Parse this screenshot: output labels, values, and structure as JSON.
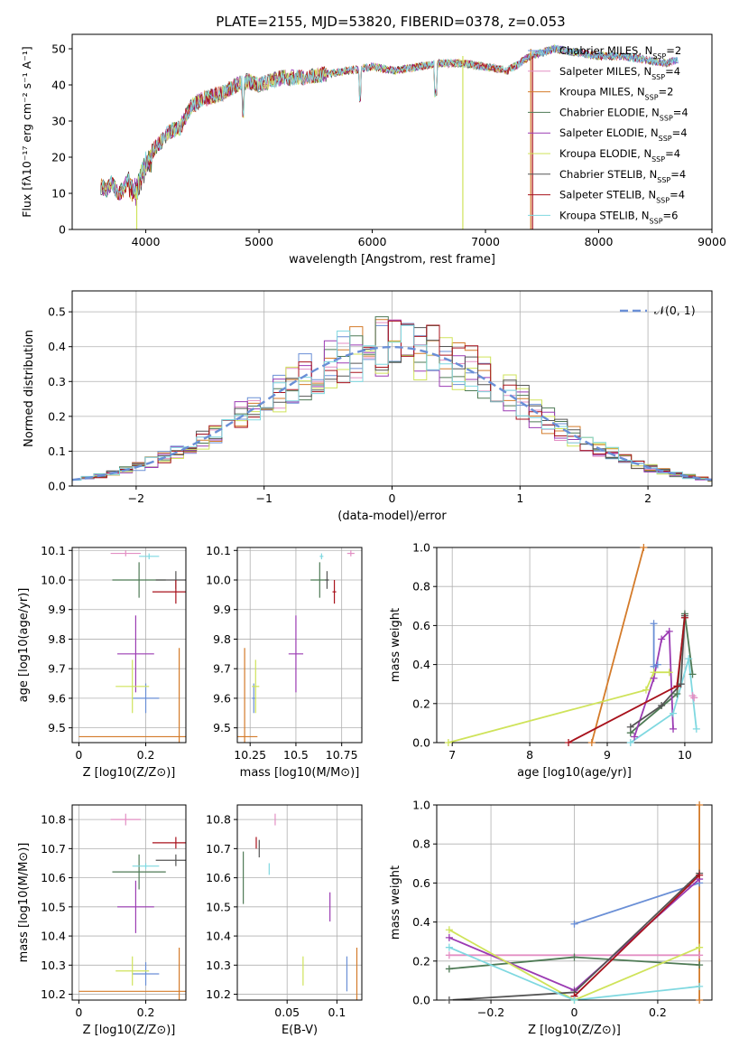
{
  "figure": {
    "title": "PLATE=2155, MJD=53820, FIBERID=0378, z=0.053"
  },
  "legend_labels": [
    {
      "name": "Chabrier MILES",
      "n": "2",
      "color": "#6a8fd6"
    },
    {
      "name": "Salpeter MILES",
      "n": "4",
      "color": "#e38fc4"
    },
    {
      "name": "Kroupa MILES",
      "n": "2",
      "color": "#d47b2a"
    },
    {
      "name": "Chabrier ELODIE",
      "n": "4",
      "color": "#4e7a55"
    },
    {
      "name": "Salpeter ELODIE",
      "n": "4",
      "color": "#9b3bb3"
    },
    {
      "name": "Kroupa ELODIE",
      "n": "4",
      "color": "#cfe35a"
    },
    {
      "name": "Chabrier STELIB",
      "n": "4",
      "color": "#555555"
    },
    {
      "name": "Salpeter STELIB",
      "n": "4",
      "color": "#a8121c"
    },
    {
      "name": "Kroupa STELIB",
      "n": "6",
      "color": "#7fd8e0"
    }
  ],
  "chart_data": [
    {
      "id": "spectrum",
      "type": "line",
      "xlabel": "wavelength [Angstrom, rest frame]",
      "xlim": [
        3350,
        9000
      ],
      "ylim": [
        0,
        54
      ],
      "xticks": [
        4000,
        5000,
        6000,
        7000,
        8000,
        9000
      ],
      "yticks": [
        0,
        10,
        20,
        30,
        40,
        50
      ],
      "x": [
        3600,
        3650,
        3700,
        3750,
        3800,
        3850,
        3900,
        3950,
        4000,
        4100,
        4200,
        4300,
        4400,
        4500,
        4600,
        4700,
        4800,
        4900,
        5000,
        5200,
        5400,
        5600,
        5800,
        6000,
        6200,
        6400,
        6600,
        6800,
        7000,
        7200,
        7400,
        7600,
        7800,
        8000,
        8200,
        8400,
        8600,
        8700
      ],
      "flux": [
        12,
        11,
        13,
        10,
        11,
        14,
        12,
        15,
        20,
        23,
        27,
        28,
        34,
        36,
        37,
        38,
        40,
        41,
        40,
        42,
        42,
        43,
        44,
        45,
        44,
        45,
        46,
        46,
        45,
        44,
        48,
        50,
        49,
        48,
        48,
        47,
        46,
        47
      ],
      "dropouts": [
        3920,
        6800,
        7400
      ]
    },
    {
      "id": "residuals",
      "type": "histogram",
      "xlabel": "(data-model)/error",
      "ylabel": "Normed distribution",
      "xlim": [
        -2.5,
        2.5
      ],
      "ylim": [
        0,
        0.56
      ],
      "xticks": [
        -2,
        -1,
        0,
        1,
        2
      ],
      "yticks": [
        0.0,
        0.1,
        0.2,
        0.3,
        0.4,
        0.5
      ],
      "legend": "N(0,1)",
      "bin_width": 0.1
    },
    {
      "id": "age_vs_Z",
      "type": "scatter",
      "xlabel": "Z [log10(Z/Z⊙)]",
      "ylabel": "age [log10(age/yr)]",
      "xlim": [
        -0.02,
        0.32
      ],
      "ylim": [
        9.45,
        10.11
      ],
      "xticks": [
        0.0,
        0.2
      ],
      "yticks": [
        9.5,
        9.6,
        9.7,
        9.8,
        9.9,
        10.0,
        10.1
      ],
      "points": [
        {
          "x": 0.2,
          "y": 9.6,
          "xerr": 0.04,
          "yerr": 0.05
        },
        {
          "x": 0.14,
          "y": 10.09,
          "xerr": 0.045,
          "yerr": 0.01
        },
        {
          "x": 0.3,
          "y": 9.47,
          "xerr": 0.3,
          "yerr": 0.3
        },
        {
          "x": 0.18,
          "y": 10.0,
          "xerr": 0.08,
          "yerr": 0.06
        },
        {
          "x": 0.17,
          "y": 9.75,
          "xerr": 0.055,
          "yerr": 0.13
        },
        {
          "x": 0.16,
          "y": 9.64,
          "xerr": 0.05,
          "yerr": 0.09
        },
        {
          "x": 0.29,
          "y": 10.0,
          "xerr": 0.06,
          "yerr": 0.03
        },
        {
          "x": 0.29,
          "y": 9.96,
          "xerr": 0.07,
          "yerr": 0.04
        },
        {
          "x": 0.21,
          "y": 10.08,
          "xerr": 0.03,
          "yerr": 0.01
        }
      ]
    },
    {
      "id": "age_vs_mass",
      "type": "scatter",
      "xlabel": "mass [log10(M/M⊙)]",
      "xlim": [
        10.18,
        10.86
      ],
      "ylim": [
        9.45,
        10.11
      ],
      "xticks": [
        10.25,
        10.5,
        10.75
      ],
      "yticks": [
        9.5,
        9.6,
        9.7,
        9.8,
        9.9,
        10.0,
        10.1
      ],
      "points": [
        {
          "x": 10.27,
          "y": 9.6,
          "xerr": 0.01,
          "yerr": 0.05
        },
        {
          "x": 10.8,
          "y": 10.09,
          "xerr": 0.02,
          "yerr": 0.01
        },
        {
          "x": 10.22,
          "y": 9.47,
          "xerr": 0.07,
          "yerr": 0.3
        },
        {
          "x": 10.63,
          "y": 10.0,
          "xerr": 0.05,
          "yerr": 0.06
        },
        {
          "x": 10.5,
          "y": 9.75,
          "xerr": 0.04,
          "yerr": 0.13
        },
        {
          "x": 10.28,
          "y": 9.64,
          "xerr": 0.02,
          "yerr": 0.09
        },
        {
          "x": 10.67,
          "y": 10.0,
          "xerr": 0.01,
          "yerr": 0.03
        },
        {
          "x": 10.71,
          "y": 9.96,
          "xerr": 0.01,
          "yerr": 0.04
        },
        {
          "x": 10.64,
          "y": 10.08,
          "xerr": 0.01,
          "yerr": 0.01
        }
      ]
    },
    {
      "id": "massweight_vs_age",
      "type": "line",
      "xlabel": "age [log10(age/yr)]",
      "ylabel": "mass weight",
      "xlim": [
        6.8,
        10.35
      ],
      "ylim": [
        0,
        1
      ],
      "xticks": [
        7,
        8,
        9,
        10
      ],
      "yticks": [
        0.0,
        0.2,
        0.4,
        0.6,
        0.8,
        1.0
      ],
      "series": [
        {
          "x": [
            9.6,
            9.6,
            9.65
          ],
          "y": [
            0.61,
            0.39,
            0.4
          ]
        },
        {
          "x": [
            10.1,
            10.12
          ],
          "y": [
            0.24,
            0.23
          ]
        },
        {
          "x": [
            8.8,
            9.47
          ],
          "y": [
            0.0,
            1.0
          ]
        },
        {
          "x": [
            9.3,
            9.9,
            10.0,
            10.1
          ],
          "y": [
            0.05,
            0.25,
            0.66,
            0.35
          ]
        },
        {
          "x": [
            9.35,
            9.6,
            9.7,
            9.8,
            9.85
          ],
          "y": [
            0.03,
            0.33,
            0.53,
            0.57,
            0.07
          ]
        },
        {
          "x": [
            6.95,
            9.5,
            9.6,
            9.8
          ],
          "y": [
            0.0,
            0.27,
            0.36,
            0.36
          ]
        },
        {
          "x": [
            9.3,
            9.7,
            9.95,
            10.0
          ],
          "y": [
            0.08,
            0.19,
            0.3,
            0.65
          ]
        },
        {
          "x": [
            8.5,
            9.9,
            10.0
          ],
          "y": [
            0.0,
            0.29,
            0.64
          ]
        },
        {
          "x": [
            9.3,
            9.85,
            10.05,
            10.15
          ],
          "y": [
            0.0,
            0.15,
            0.43,
            0.07
          ]
        }
      ]
    },
    {
      "id": "mass_vs_Z",
      "type": "scatter",
      "xlabel": "Z [log10(Z/Z⊙)]",
      "ylabel": "mass [log10(M/M⊙)]",
      "xlim": [
        -0.02,
        0.32
      ],
      "ylim": [
        10.18,
        10.85
      ],
      "xticks": [
        0.0,
        0.2
      ],
      "yticks": [
        10.2,
        10.3,
        10.4,
        10.5,
        10.6,
        10.7,
        10.8
      ],
      "points": [
        {
          "x": 0.2,
          "y": 10.27,
          "xerr": 0.04,
          "yerr": 0.04
        },
        {
          "x": 0.14,
          "y": 10.8,
          "xerr": 0.045,
          "yerr": 0.02
        },
        {
          "x": 0.3,
          "y": 10.21,
          "xerr": 0.3,
          "yerr": 0.15
        },
        {
          "x": 0.18,
          "y": 10.62,
          "xerr": 0.08,
          "yerr": 0.06
        },
        {
          "x": 0.17,
          "y": 10.5,
          "xerr": 0.055,
          "yerr": 0.09
        },
        {
          "x": 0.16,
          "y": 10.28,
          "xerr": 0.05,
          "yerr": 0.05
        },
        {
          "x": 0.29,
          "y": 10.66,
          "xerr": 0.06,
          "yerr": 0.02
        },
        {
          "x": 0.29,
          "y": 10.72,
          "xerr": 0.07,
          "yerr": 0.02
        },
        {
          "x": 0.2,
          "y": 10.64,
          "xerr": 0.04,
          "yerr": 0.01
        }
      ]
    },
    {
      "id": "mass_vs_EBV",
      "type": "scatter",
      "xlabel": "E(B-V)",
      "xlim": [
        0.0,
        0.125
      ],
      "ylim": [
        10.18,
        10.85
      ],
      "xticks": [
        0.05,
        0.1
      ],
      "yticks": [
        10.2,
        10.3,
        10.4,
        10.5,
        10.6,
        10.7,
        10.8
      ],
      "points": [
        {
          "x": 0.11,
          "y": 10.27,
          "yerr": 0.06
        },
        {
          "x": 0.038,
          "y": 10.8,
          "yerr": 0.02
        },
        {
          "x": 0.12,
          "y": 10.24,
          "yerr": 0.12
        },
        {
          "x": 0.006,
          "y": 10.6,
          "yerr": 0.09
        },
        {
          "x": 0.093,
          "y": 10.5,
          "yerr": 0.05
        },
        {
          "x": 0.066,
          "y": 10.28,
          "yerr": 0.05
        },
        {
          "x": 0.022,
          "y": 10.7,
          "yerr": 0.03
        },
        {
          "x": 0.019,
          "y": 10.72,
          "yerr": 0.02
        },
        {
          "x": 0.032,
          "y": 10.63,
          "yerr": 0.02
        }
      ]
    },
    {
      "id": "massweight_vs_Z",
      "type": "line",
      "xlabel": "Z [log10(Z/Z⊙)]",
      "ylabel": "mass weight",
      "xlim": [
        -0.33,
        0.33
      ],
      "ylim": [
        0,
        1
      ],
      "xticks": [
        -0.2,
        0.0,
        0.2
      ],
      "yticks": [
        0.0,
        0.2,
        0.4,
        0.6,
        0.8,
        1.0
      ],
      "series": [
        {
          "x": [
            0.0,
            0.3
          ],
          "y": [
            0.39,
            0.6
          ]
        },
        {
          "x": [
            -0.3,
            0.3
          ],
          "y": [
            0.23,
            0.23
          ]
        },
        {
          "x": [
            0.3,
            0.3
          ],
          "y": [
            0.0,
            1.0
          ]
        },
        {
          "x": [
            -0.3,
            0.0,
            0.3
          ],
          "y": [
            0.16,
            0.22,
            0.18
          ]
        },
        {
          "x": [
            -0.3,
            0.0,
            0.3
          ],
          "y": [
            0.32,
            0.05,
            0.62
          ]
        },
        {
          "x": [
            -0.3,
            0.0,
            0.3
          ],
          "y": [
            0.36,
            0.0,
            0.27
          ]
        },
        {
          "x": [
            -0.3,
            0.0,
            0.3
          ],
          "y": [
            0.0,
            0.04,
            0.65
          ]
        },
        {
          "x": [
            0.0,
            0.3
          ],
          "y": [
            0.02,
            0.64
          ]
        },
        {
          "x": [
            -0.3,
            0.0,
            0.3
          ],
          "y": [
            0.27,
            0.0,
            0.07
          ]
        }
      ]
    }
  ]
}
